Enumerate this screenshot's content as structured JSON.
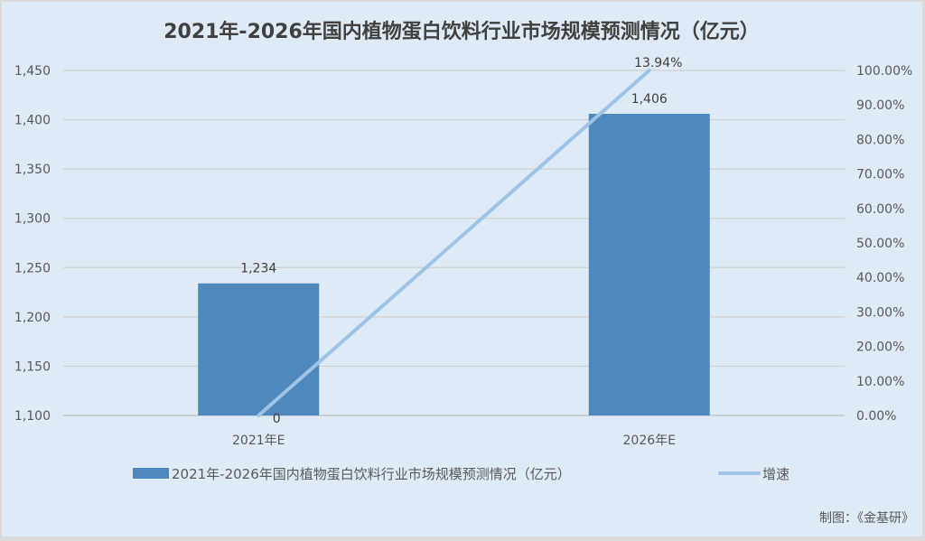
{
  "chart_data": {
    "type": "bar+line",
    "title": "2021年-2026年国内植物蛋白饮料行业市场规模预测情况（亿元）",
    "categories": [
      "2021年E",
      "2026年E"
    ],
    "series": [
      {
        "name": "2021年-2026年国内植物蛋白饮料行业市场规模预测情况（亿元）",
        "type": "bar",
        "axis": "left",
        "values": [
          1234,
          1406
        ],
        "data_labels": [
          "1,234",
          "1,406"
        ],
        "color": "#4e88bd"
      },
      {
        "name": "增速",
        "type": "line",
        "axis": "right",
        "values": [
          0,
          13.94
        ],
        "data_labels": [
          "0",
          "13.94%"
        ],
        "color": "#9dc3e6"
      }
    ],
    "y_left": {
      "min": 1100,
      "max": 1450,
      "ticks": [
        "1,100",
        "1,150",
        "1,200",
        "1,250",
        "1,300",
        "1,350",
        "1,400",
        "1,450"
      ]
    },
    "y_right": {
      "min": 0,
      "max": 100,
      "ticks": [
        "0.00%",
        "10.00%",
        "20.00%",
        "30.00%",
        "40.00%",
        "50.00%",
        "60.00%",
        "70.00%",
        "80.00%",
        "90.00%",
        "100.00%"
      ]
    },
    "grid": true,
    "legend_position": "bottom",
    "source_note": "制图：《金基研》"
  }
}
